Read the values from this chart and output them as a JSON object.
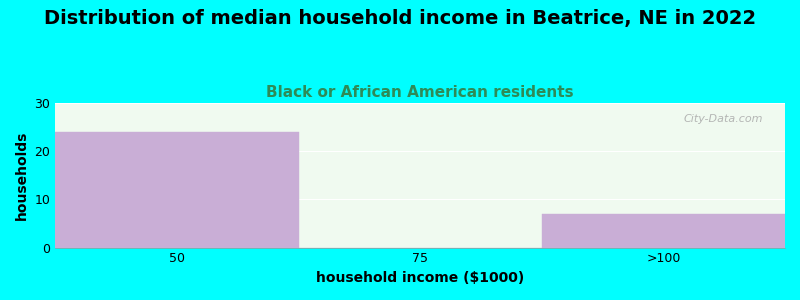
{
  "title": "Distribution of median household income in Beatrice, NE in 2022",
  "subtitle": "Black or African American residents",
  "xlabel": "household income ($1000)",
  "ylabel": "households",
  "background_color": "#00FFFF",
  "plot_bg_color": "#f0faf0",
  "bar_color": "#c9aed6",
  "bar_edge_color": "#c9aed6",
  "categories": [
    "50",
    "75",
    ">100"
  ],
  "values": [
    24,
    0,
    7
  ],
  "ylim": [
    0,
    30
  ],
  "yticks": [
    0,
    10,
    20,
    30
  ],
  "bar_width": 1.0,
  "bar_positions": [
    0,
    1,
    2
  ],
  "title_fontsize": 14,
  "subtitle_fontsize": 11,
  "subtitle_color": "#2e8b57",
  "axis_label_fontsize": 10,
  "tick_fontsize": 9,
  "watermark": "City-Data.com"
}
